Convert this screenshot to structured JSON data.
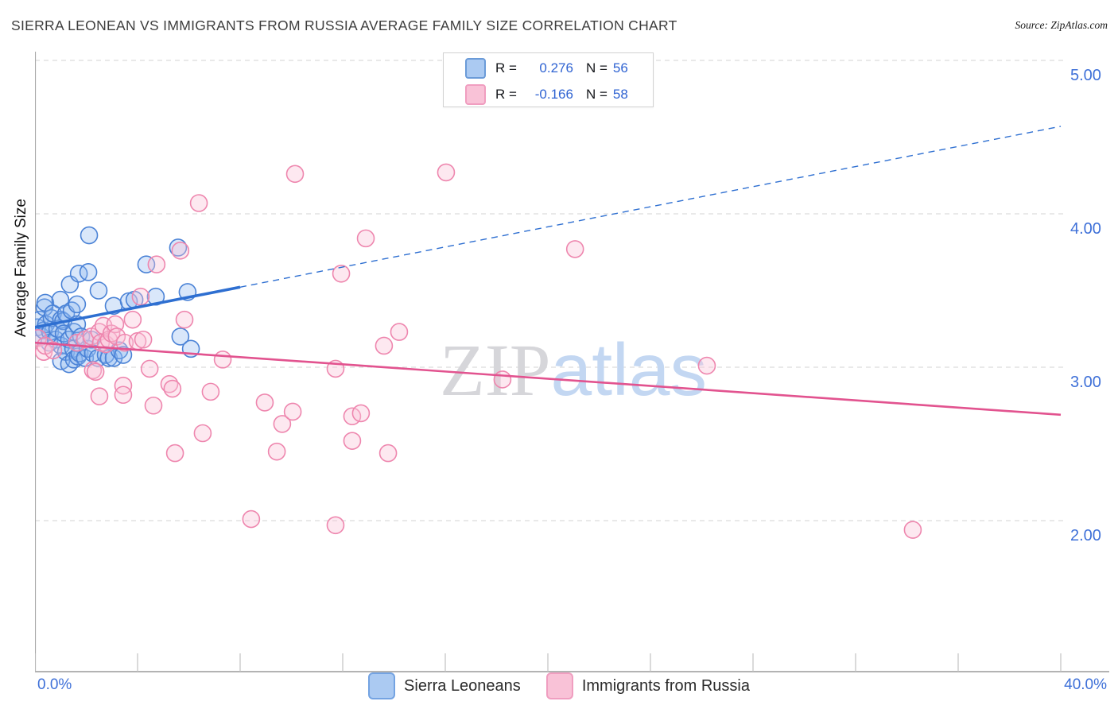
{
  "header": {
    "title": "SIERRA LEONEAN VS IMMIGRANTS FROM RUSSIA AVERAGE FAMILY SIZE CORRELATION CHART",
    "source": "Source: ZipAtlas.com"
  },
  "chart_data": {
    "type": "scatter",
    "title": "Sierra Leonean vs Immigrants from Russia Average Family Size",
    "xlabel": "",
    "ylabel": "Average Family Size",
    "xlim": [
      0,
      40
    ],
    "ylim": [
      1.1,
      5.1
    ],
    "grid": "horizontal-dashed",
    "legend_position": "bottom-center",
    "x_tick_labels": [
      "0.0%",
      "40.0%"
    ],
    "y_tick_labels": [
      "5.00",
      "4.00",
      "3.00",
      "2.00"
    ],
    "y_grid_values": [
      5,
      4,
      3,
      2
    ],
    "legend_box": {
      "rows": [
        {
          "r_label": "R =",
          "r_value": "0.276",
          "n_label": "N =",
          "n_value": "56"
        },
        {
          "r_label": "R =",
          "r_value": "-0.166",
          "n_label": "N =",
          "n_value": "58"
        }
      ]
    },
    "watermark": {
      "part1": "ZIP",
      "part2": "atlas"
    },
    "colors": {
      "blue_stroke": "#4a82d6",
      "blue_fill": "rgba(140,181,240,0.33)",
      "pink_stroke": "#ee86ae",
      "pink_fill": "rgba(249,194,215,0.38)",
      "blue_trend": "#2e6fd1",
      "pink_trend": "#e2538f",
      "grid": "#dcdcdc",
      "axis": "#a9a9a9",
      "tick_label": "#3e70d8"
    },
    "series": [
      {
        "name": "Sierra Leoneans",
        "points": [
          [
            0.09,
            3.26
          ],
          [
            0.19,
            3.31
          ],
          [
            0.25,
            3.2
          ],
          [
            0.34,
            3.24
          ],
          [
            0.37,
            3.39
          ],
          [
            0.4,
            3.42
          ],
          [
            0.43,
            3.28
          ],
          [
            0.56,
            3.16
          ],
          [
            0.59,
            3.23
          ],
          [
            0.65,
            3.32
          ],
          [
            0.7,
            3.35
          ],
          [
            0.81,
            3.18
          ],
          [
            0.87,
            3.25
          ],
          [
            0.99,
            3.44
          ],
          [
            1.02,
            3.31
          ],
          [
            1.02,
            3.14
          ],
          [
            1.02,
            3.04
          ],
          [
            1.1,
            3.3
          ],
          [
            1.12,
            3.22
          ],
          [
            1.21,
            3.35
          ],
          [
            1.21,
            3.1
          ],
          [
            1.33,
            3.18
          ],
          [
            1.33,
            3.02
          ],
          [
            1.36,
            3.54
          ],
          [
            1.43,
            3.37
          ],
          [
            1.49,
            3.12
          ],
          [
            1.52,
            3.23
          ],
          [
            1.52,
            3.05
          ],
          [
            1.64,
            3.28
          ],
          [
            1.64,
            3.41
          ],
          [
            1.67,
            3.07
          ],
          [
            1.71,
            3.61
          ],
          [
            1.74,
            3.09
          ],
          [
            1.8,
            3.2
          ],
          [
            1.95,
            3.06
          ],
          [
            2.05,
            3.12
          ],
          [
            2.08,
            3.62
          ],
          [
            2.11,
            3.86
          ],
          [
            2.2,
            3.18
          ],
          [
            2.26,
            3.09
          ],
          [
            2.45,
            3.06
          ],
          [
            2.48,
            3.5
          ],
          [
            2.76,
            3.08
          ],
          [
            2.88,
            3.06
          ],
          [
            3.07,
            3.4
          ],
          [
            3.07,
            3.06
          ],
          [
            3.29,
            3.11
          ],
          [
            3.44,
            3.08
          ],
          [
            3.66,
            3.43
          ],
          [
            3.88,
            3.44
          ],
          [
            4.34,
            3.67
          ],
          [
            4.71,
            3.46
          ],
          [
            5.58,
            3.78
          ],
          [
            5.67,
            3.2
          ],
          [
            5.95,
            3.49
          ],
          [
            6.08,
            3.12
          ]
        ]
      },
      {
        "name": "Immigrants from Russia",
        "points": [
          [
            0.12,
            3.19
          ],
          [
            0.34,
            3.1
          ],
          [
            0.4,
            3.14
          ],
          [
            0.71,
            3.11
          ],
          [
            1.64,
            3.16
          ],
          [
            1.95,
            3.18
          ],
          [
            2.2,
            3.2
          ],
          [
            2.26,
            2.98
          ],
          [
            2.36,
            2.97
          ],
          [
            2.51,
            3.23
          ],
          [
            2.51,
            2.81
          ],
          [
            2.57,
            3.16
          ],
          [
            2.67,
            3.27
          ],
          [
            2.76,
            3.15
          ],
          [
            2.88,
            3.18
          ],
          [
            2.98,
            3.22
          ],
          [
            3.13,
            3.28
          ],
          [
            3.19,
            3.2
          ],
          [
            3.44,
            2.88
          ],
          [
            3.44,
            2.82
          ],
          [
            3.5,
            3.16
          ],
          [
            3.81,
            3.31
          ],
          [
            4.0,
            3.17
          ],
          [
            4.12,
            3.46
          ],
          [
            4.22,
            3.18
          ],
          [
            4.47,
            2.99
          ],
          [
            4.62,
            2.75
          ],
          [
            4.74,
            3.67
          ],
          [
            5.24,
            2.89
          ],
          [
            5.36,
            2.86
          ],
          [
            5.46,
            2.44
          ],
          [
            5.67,
            3.76
          ],
          [
            5.83,
            3.31
          ],
          [
            6.39,
            4.07
          ],
          [
            6.54,
            2.57
          ],
          [
            6.85,
            2.84
          ],
          [
            7.32,
            3.05
          ],
          [
            8.43,
            2.01
          ],
          [
            8.96,
            2.77
          ],
          [
            9.43,
            2.45
          ],
          [
            9.64,
            2.63
          ],
          [
            10.05,
            2.71
          ],
          [
            10.14,
            4.26
          ],
          [
            11.72,
            2.99
          ],
          [
            11.72,
            1.97
          ],
          [
            11.94,
            3.61
          ],
          [
            12.37,
            2.68
          ],
          [
            12.37,
            2.52
          ],
          [
            12.71,
            2.7
          ],
          [
            12.9,
            3.84
          ],
          [
            13.61,
            3.14
          ],
          [
            13.77,
            2.44
          ],
          [
            14.2,
            3.23
          ],
          [
            16.03,
            4.27
          ],
          [
            18.23,
            2.92
          ],
          [
            21.06,
            3.77
          ],
          [
            26.2,
            3.01
          ],
          [
            34.23,
            1.94
          ]
        ]
      }
    ],
    "trend_lines": [
      {
        "series": "Sierra Leoneans",
        "x1": 0,
        "y1": 3.26,
        "x2": 40,
        "y2": 4.57,
        "solid_until_x": 8.0,
        "color_key": "blue_trend"
      },
      {
        "series": "Immigrants from Russia",
        "x1": 0,
        "y1": 3.16,
        "x2": 40,
        "y2": 2.69,
        "solid_until_x": 40,
        "color_key": "pink_trend"
      }
    ]
  },
  "bottom_legend": {
    "items": [
      {
        "label": "Sierra Leoneans"
      },
      {
        "label": "Immigrants from Russia"
      }
    ]
  }
}
